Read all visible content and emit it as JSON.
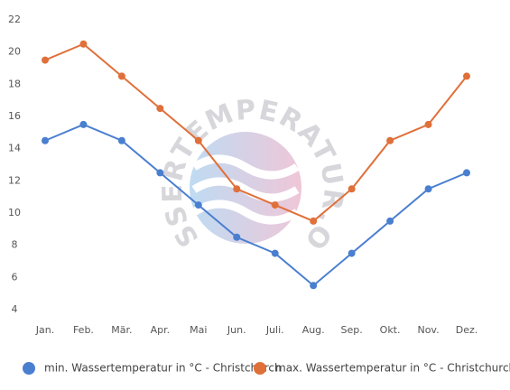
{
  "chart_data": {
    "type": "line",
    "categories": [
      "Jan.",
      "Feb.",
      "Mär.",
      "Apr.",
      "Mai",
      "Jun.",
      "Juli.",
      "Aug.",
      "Sep.",
      "Okt.",
      "Nov.",
      "Dez."
    ],
    "series": [
      {
        "name": "min. Wassertemperatur in °C - Christchurch",
        "color": "#4a7fd0",
        "values": [
          14.5,
          15.5,
          14.5,
          12.5,
          10.5,
          8.5,
          7.5,
          5.5,
          7.5,
          9.5,
          11.5,
          12.5
        ]
      },
      {
        "name": "max. Wassertemperatur in °C - Christchurch",
        "color": "#e0703a",
        "values": [
          19.5,
          20.5,
          18.5,
          16.5,
          14.5,
          11.5,
          10.5,
          9.5,
          11.5,
          14.5,
          15.5,
          18.5
        ]
      }
    ],
    "ylim": [
      4,
      22
    ],
    "yticks": [
      4,
      6,
      8,
      10,
      12,
      14,
      16,
      18,
      20,
      22
    ],
    "grid": false,
    "legend": "bottom",
    "watermark": "WASSERTEMPERATUR.ORG"
  }
}
